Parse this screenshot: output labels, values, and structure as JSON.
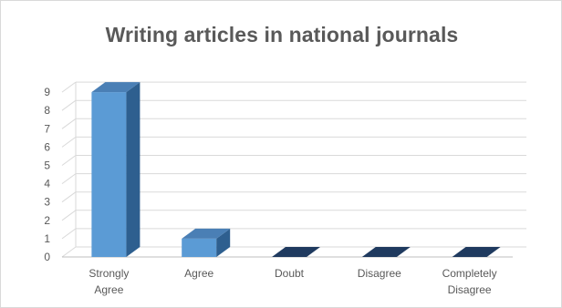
{
  "chart_data": {
    "type": "bar",
    "title": "Writing articles in national journals",
    "categories": [
      "Strongly Agree",
      "Agree",
      "Doubt",
      "Disagree",
      "Completely Disagree"
    ],
    "category_lines": [
      [
        "Strongly",
        "Agree"
      ],
      [
        "Agree"
      ],
      [
        "Doubt"
      ],
      [
        "Disagree"
      ],
      [
        "Completely",
        "Disagree"
      ]
    ],
    "values": [
      9,
      1,
      0,
      0,
      0
    ],
    "ylim": [
      0,
      9
    ],
    "yticks": [
      0,
      1,
      2,
      3,
      4,
      5,
      6,
      7,
      8,
      9
    ],
    "grid": true,
    "legend": "none",
    "style": "3d-column",
    "colors": {
      "bar_front": "#5b9bd5",
      "bar_side": "#2e5f8f",
      "bar_top": "#4a7fb5",
      "zero_bar": "#1f3a5f",
      "gridline": "#d9d9d9",
      "text": "#595959"
    }
  }
}
